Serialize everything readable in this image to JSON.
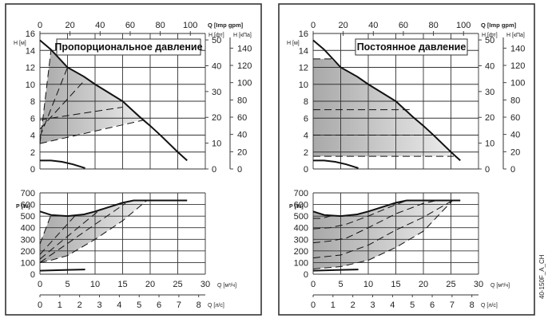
{
  "chart_data": [
    {
      "type": "line",
      "title": "Пропорциональное давление",
      "mode": "proportional",
      "upper": {
        "ylabel": "H [м]",
        "ylim": [
          0,
          16
        ],
        "yticks": [
          "0",
          "2",
          "4",
          "6",
          "8",
          "10",
          "12",
          "14",
          "16"
        ],
        "top_axis_label": "Q [Imp gpm]",
        "top_ticks": [
          "0",
          "20",
          "40",
          "60",
          "80",
          "100"
        ],
        "ft_label": "H [фт]",
        "ft_ticks": [
          "0",
          "10",
          "20",
          "30",
          "40",
          "50"
        ],
        "kpa_label": "H [кПа]",
        "kpa_ticks": [
          "0",
          "20",
          "40",
          "60",
          "80",
          "100",
          "120",
          "140"
        ],
        "max_curve": {
          "x": [
            0,
            2,
            5,
            8,
            10,
            12,
            15,
            18,
            20,
            22,
            25,
            26.7
          ],
          "y": [
            15.2,
            14.1,
            12.0,
            10.9,
            10.0,
            9.2,
            8.0,
            6.2,
            5.1,
            3.9,
            2.0,
            1.0
          ]
        },
        "min_curve": {
          "x": [
            0,
            2,
            4,
            6,
            8.2
          ],
          "y": [
            1.0,
            1.0,
            0.85,
            0.55,
            0.1
          ]
        },
        "dashed_lines": [
          {
            "x": [
              0,
              2.0
            ],
            "y": [
              3.0,
              14.0
            ]
          },
          {
            "x": [
              0,
              5.0
            ],
            "y": [
              3.8,
              12.0
            ]
          },
          {
            "x": [
              0,
              8.0
            ],
            "y": [
              4.7,
              10.4
            ]
          },
          {
            "x": [
              0,
              15.0
            ],
            "y": [
              5.8,
              7.3
            ]
          },
          {
            "x": [
              0,
              19.0
            ],
            "y": [
              3.0,
              5.8
            ]
          }
        ],
        "shaded_region": {
          "x": [
            0,
            2,
            5,
            8,
            10,
            15,
            19,
            0
          ],
          "y": [
            3.0,
            14.1,
            12.0,
            10.9,
            10.0,
            8.0,
            5.9,
            3.0
          ]
        }
      },
      "lower": {
        "ylabel": "P [W]",
        "ylim": [
          0,
          700
        ],
        "yticks": [
          "0",
          "100",
          "200",
          "300",
          "400",
          "500",
          "600",
          "700"
        ],
        "xlabel": "Q [м³/ч]",
        "xlim": [
          0,
          30
        ],
        "xticks": [
          "0",
          "5",
          "10",
          "15",
          "20",
          "25",
          "30"
        ],
        "x2label": "Q [л/с]",
        "x2ticks": [
          "0",
          "1",
          "2",
          "3",
          "4",
          "5",
          "6",
          "7",
          "8"
        ],
        "max_curve": {
          "x": [
            0,
            2,
            5,
            8,
            10,
            12,
            15,
            17,
            20,
            26.7
          ],
          "y": [
            540,
            510,
            500,
            515,
            540,
            570,
            615,
            635,
            635,
            635
          ]
        },
        "min_curve": {
          "x": [
            0,
            5,
            8.2
          ],
          "y": [
            30,
            37,
            40
          ]
        },
        "dashed_lines": [
          {
            "x": [
              0,
              2
            ],
            "y": [
              260,
              510
            ]
          },
          {
            "x": [
              0,
              6.5
            ],
            "y": [
              170,
              510
            ]
          },
          {
            "x": [
              0,
              11
            ],
            "y": [
              130,
              560
            ]
          },
          {
            "x": [
              0,
              15.5
            ],
            "y": [
              100,
              610
            ]
          },
          {
            "x": [
              0,
              2,
              5,
              10,
              15,
              19.4
            ],
            "y": [
              100,
              120,
              160,
              300,
              460,
              635
            ]
          }
        ],
        "shaded_region": {
          "x": [
            0,
            2,
            5,
            8,
            10,
            12,
            15,
            17,
            19.4,
            15,
            10,
            5,
            0
          ],
          "y": [
            260,
            510,
            500,
            515,
            540,
            570,
            615,
            635,
            635,
            460,
            300,
            160,
            100
          ]
        }
      }
    },
    {
      "type": "line",
      "title": "Постоянное давление",
      "mode": "constant",
      "upper": {
        "ylabel": "H [м]",
        "ylim": [
          0,
          16
        ],
        "yticks": [
          "0",
          "2",
          "4",
          "6",
          "8",
          "10",
          "12",
          "14",
          "16"
        ],
        "top_axis_label": "Q [Imp gpm]",
        "top_ticks": [
          "0",
          "20",
          "40",
          "60",
          "80",
          "100"
        ],
        "ft_label": "H [фт]",
        "ft_ticks": [
          "0",
          "10",
          "20",
          "30",
          "40",
          "50"
        ],
        "kpa_label": "H [кПа]",
        "kpa_ticks": [
          "0",
          "20",
          "40",
          "60",
          "80",
          "100",
          "120",
          "140"
        ],
        "max_curve": {
          "x": [
            0,
            2,
            5,
            8,
            10,
            12,
            15,
            18,
            20,
            22,
            25,
            26.7
          ],
          "y": [
            15.2,
            14.1,
            12.0,
            10.9,
            10.0,
            9.2,
            8.0,
            6.2,
            5.1,
            3.9,
            2.0,
            1.0
          ]
        },
        "min_curve": {
          "x": [
            0,
            2,
            4,
            6,
            8.2
          ],
          "y": [
            1.0,
            1.0,
            0.85,
            0.55,
            0.1
          ]
        },
        "dashed_lines": [
          {
            "x": [
              0,
              3.5
            ],
            "y": [
              13.0,
              13.0
            ]
          },
          {
            "x": [
              0,
              17.5
            ],
            "y": [
              7.0,
              7.0
            ]
          },
          {
            "x": [
              0,
              22.5
            ],
            "y": [
              4.0,
              4.0
            ]
          },
          {
            "x": [
              0,
              25.5
            ],
            "y": [
              1.5,
              1.5
            ]
          }
        ],
        "shaded_region": {
          "x": [
            0,
            3.2,
            5,
            8,
            10,
            12,
            15,
            18,
            20,
            22,
            25.3,
            0
          ],
          "y": [
            13.0,
            13.0,
            12.0,
            10.9,
            10.0,
            9.2,
            8.0,
            6.2,
            5.1,
            3.9,
            1.5,
            1.5
          ]
        }
      },
      "lower": {
        "ylabel": "P [W]",
        "ylim": [
          0,
          700
        ],
        "yticks": [
          "0",
          "100",
          "200",
          "300",
          "400",
          "500",
          "600",
          "700"
        ],
        "xlabel": "Q [м³/ч]",
        "xlim": [
          0,
          30
        ],
        "xticks": [
          "0",
          "5",
          "10",
          "15",
          "20",
          "25",
          "30"
        ],
        "x2label": "Q [л/с]",
        "x2ticks": [
          "0",
          "1",
          "2",
          "3",
          "4",
          "5",
          "6",
          "7",
          "8"
        ],
        "max_curve": {
          "x": [
            0,
            2,
            5,
            8,
            10,
            12,
            15,
            17,
            20,
            26.7
          ],
          "y": [
            540,
            510,
            500,
            515,
            540,
            570,
            615,
            635,
            635,
            635
          ]
        },
        "min_curve": {
          "x": [
            0,
            5,
            8.2
          ],
          "y": [
            30,
            37,
            40
          ]
        },
        "dashed_lines": [
          {
            "x": [
              0,
              1.5,
              3.5
            ],
            "y": [
              480,
              480,
              505
            ]
          },
          {
            "x": [
              0,
              3,
              6,
              10,
              14,
              17
            ],
            "y": [
              390,
              400,
              430,
              500,
              580,
              635
            ]
          },
          {
            "x": [
              0,
              3,
              6,
              10,
              15,
              20,
              22.5
            ],
            "y": [
              270,
              285,
              310,
              400,
              520,
              610,
              635
            ]
          },
          {
            "x": [
              0,
              5,
              10,
              15,
              20,
              25.3
            ],
            "y": [
              140,
              165,
              250,
              380,
              490,
              635
            ]
          },
          {
            "x": [
              0,
              5,
              10,
              15,
              20,
              25.3
            ],
            "y": [
              45,
              65,
              120,
              230,
              370,
              635
            ]
          }
        ],
        "shaded_region": {
          "x": [
            0,
            2,
            5,
            8,
            10,
            12,
            15,
            17,
            25.3,
            20,
            15,
            10,
            5,
            0
          ],
          "y": [
            540,
            510,
            500,
            515,
            540,
            570,
            615,
            635,
            635,
            370,
            230,
            120,
            65,
            45
          ]
        }
      }
    }
  ],
  "figure_code": "40-150F_A_CH"
}
